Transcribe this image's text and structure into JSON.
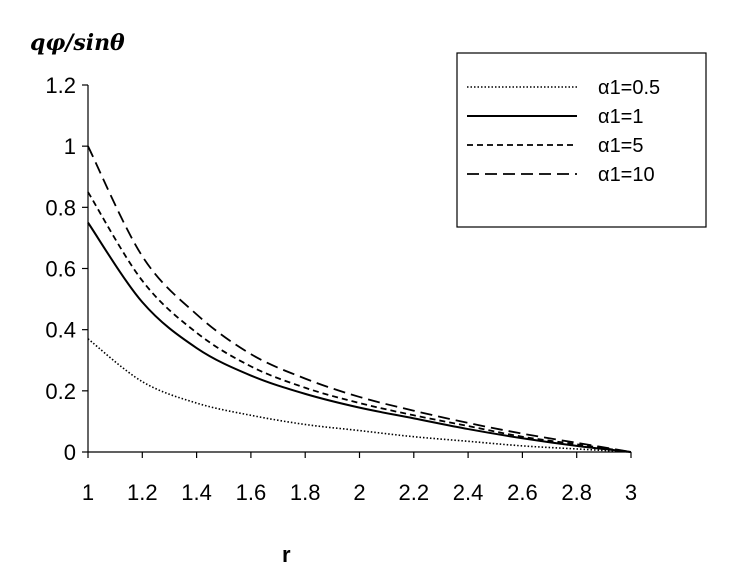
{
  "chart_data": {
    "type": "line",
    "title": "",
    "ylabel": "qφ/sinθ",
    "xlabel": "r",
    "xlim": [
      1,
      3
    ],
    "ylim": [
      0,
      1.2
    ],
    "x_ticks": [
      "1",
      "1.2",
      "1.4",
      "1.6",
      "1.8",
      "2",
      "2.2",
      "2.4",
      "2.6",
      "2.8",
      "3"
    ],
    "y_ticks": [
      "0",
      "0.2",
      "0.4",
      "0.6",
      "0.8",
      "1",
      "1.2"
    ],
    "grid": false,
    "legend_position": "top-right",
    "x": [
      1.0,
      1.2,
      1.4,
      1.6,
      1.8,
      2.0,
      2.2,
      2.4,
      2.6,
      2.8,
      3.0
    ],
    "series": [
      {
        "name": "α1=0.5",
        "style": "dotted",
        "color": "#000000",
        "values": [
          0.37,
          0.23,
          0.16,
          0.12,
          0.09,
          0.07,
          0.05,
          0.035,
          0.02,
          0.01,
          0.0
        ]
      },
      {
        "name": "α1=1",
        "style": "solid",
        "color": "#000000",
        "values": [
          0.75,
          0.49,
          0.34,
          0.25,
          0.19,
          0.145,
          0.11,
          0.075,
          0.045,
          0.02,
          0.0
        ]
      },
      {
        "name": "α1=5",
        "style": "dashed",
        "color": "#000000",
        "values": [
          0.85,
          0.56,
          0.39,
          0.28,
          0.21,
          0.16,
          0.12,
          0.085,
          0.05,
          0.025,
          0.0
        ]
      },
      {
        "name": "α1=10",
        "style": "long-dashed",
        "color": "#000000",
        "values": [
          1.0,
          0.64,
          0.45,
          0.32,
          0.24,
          0.18,
          0.135,
          0.095,
          0.06,
          0.03,
          0.0
        ]
      }
    ]
  }
}
